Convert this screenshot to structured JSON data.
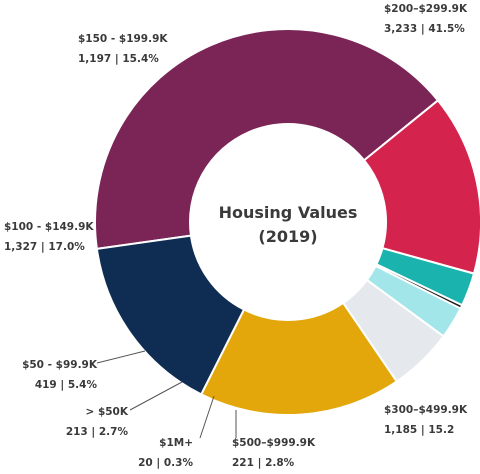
{
  "chart_data": {
    "type": "pie",
    "variant": "donut",
    "title_line1": "Housing Values",
    "title_line2": "(2019)",
    "slices": [
      {
        "name": "$200–$299.9K",
        "count": "3,233",
        "percent_label": "41.5%",
        "value": 41.5,
        "color": "#7b2456"
      },
      {
        "name": "$300–$499.9K",
        "count": "1,185",
        "percent_label": "15.2",
        "value": 15.2,
        "color": "#d4244e"
      },
      {
        "name": "$500–$999.9K",
        "count": "221",
        "percent_label": "2.8%",
        "value": 2.8,
        "color": "#1bb3ad"
      },
      {
        "name": "$1M+",
        "count": "20",
        "percent_label": "0.3%",
        "value": 0.3,
        "color": "#1a1a1a"
      },
      {
        "name": "> $50K",
        "count": "213",
        "percent_label": "2.7%",
        "value": 2.7,
        "color": "#a3e6ea"
      },
      {
        "name": "$50 - $99.9K",
        "count": "419",
        "percent_label": "5.4%",
        "value": 5.4,
        "color": "#e5e8ec"
      },
      {
        "name": "$100 - $149.9K",
        "count": "1,327",
        "percent_label": "17.0%",
        "value": 17.0,
        "color": "#e4a70b"
      },
      {
        "name": "$150 - $199.9K",
        "count": "1,197",
        "percent_label": "15.4%",
        "value": 15.4,
        "color": "#0f2d52"
      }
    ]
  }
}
